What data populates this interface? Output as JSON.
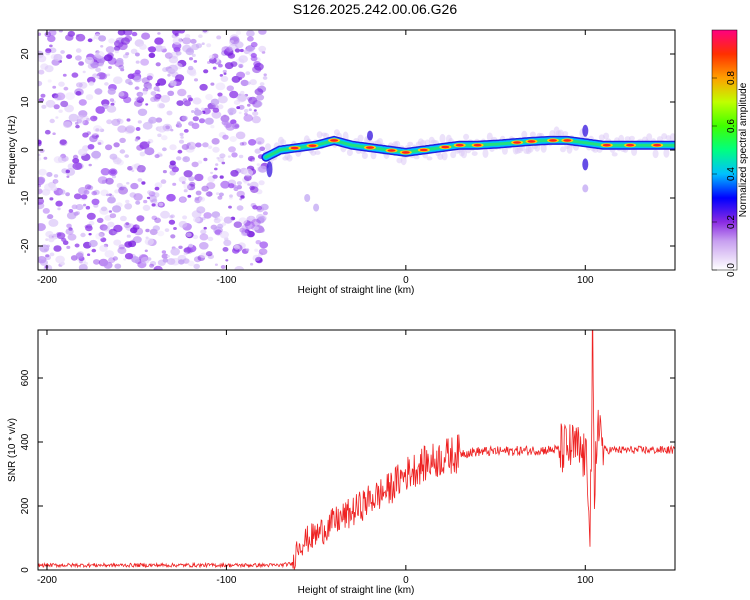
{
  "title": "S126.2025.242.00.06.G26",
  "chart_data": [
    {
      "type": "heatmap",
      "name": "spectrogram",
      "xlabel": "Height of straight line (km)",
      "ylabel": "Frequency (Hz)",
      "xlim": [
        -205,
        150
      ],
      "ylim": [
        -25,
        25
      ],
      "xticks": [
        -200,
        -100,
        0,
        100
      ],
      "xtick_labels": [
        "-200",
        "-100",
        "0",
        "100"
      ],
      "yticks": [
        -20,
        -10,
        0,
        10,
        20
      ],
      "ytick_labels": [
        "-20",
        "-10",
        "0",
        "10",
        "20"
      ],
      "noise_region_km": [
        -205,
        -78
      ],
      "signal_start_km": -78,
      "dominant_frequency_track": {
        "x": [
          -78,
          -70,
          -60,
          -50,
          -40,
          -30,
          -20,
          -10,
          0,
          10,
          20,
          30,
          40,
          50,
          60,
          70,
          80,
          90,
          100,
          110,
          120,
          130,
          140,
          150
        ],
        "y": [
          -1.5,
          0,
          0.5,
          1,
          2,
          1,
          0.5,
          0,
          -0.5,
          0,
          0.5,
          1,
          1,
          1.2,
          1.5,
          1.8,
          2,
          2,
          1.5,
          1,
          1,
          1,
          1,
          1
        ]
      },
      "colorbar": {
        "label": "Normalized spectral amplitude",
        "range": [
          0,
          1
        ],
        "ticks": [
          0.0,
          0.2,
          0.4,
          0.6,
          0.8
        ],
        "tick_labels": [
          "0.0",
          "0.2",
          "0.4",
          "0.6",
          "0.8"
        ]
      }
    },
    {
      "type": "line",
      "name": "snr",
      "xlabel": "Height of straight line (km)",
      "ylabel": "SNR (10 * v/v)",
      "xlim": [
        -205,
        150
      ],
      "ylim": [
        0,
        750
      ],
      "xticks": [
        -200,
        -100,
        0,
        100
      ],
      "xtick_labels": [
        "-200",
        "-100",
        "0",
        "100"
      ],
      "yticks": [
        0,
        200,
        400,
        600
      ],
      "ytick_labels": [
        "0",
        "200",
        "400",
        "600"
      ],
      "color": "#ee2222",
      "series": [
        {
          "name": "SNR",
          "x": [
            -205,
            -150,
            -100,
            -70,
            -63,
            -60,
            -50,
            -40,
            -30,
            -20,
            -10,
            0,
            10,
            20,
            30,
            40,
            60,
            80,
            95,
            100,
            103,
            104,
            105,
            107,
            110,
            120,
            150
          ],
          "y": [
            15,
            15,
            15,
            15,
            20,
            80,
            110,
            150,
            180,
            220,
            250,
            300,
            330,
            350,
            365,
            370,
            372,
            375,
            380,
            350,
            200,
            740,
            100,
            500,
            375,
            375,
            375
          ]
        }
      ]
    }
  ]
}
